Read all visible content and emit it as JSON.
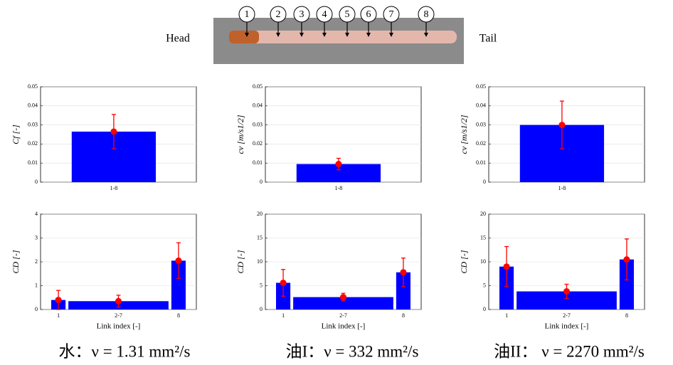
{
  "header": {
    "left_label": "Head",
    "right_label": "Tail",
    "link_numbers": [
      "1",
      "2",
      "3",
      "4",
      "5",
      "6",
      "7",
      "8"
    ]
  },
  "captions": [
    "水：ν = 1.31 mm²/s",
    "油I：ν = 332 mm²/s",
    "油II： ν = 2270 mm²/s"
  ],
  "chart_data": [
    {
      "type": "bar",
      "ylabel": "Cf [-]",
      "categories": [
        "1-8"
      ],
      "values": [
        0.0265
      ],
      "errors": [
        0.009
      ],
      "color": "#0000ff",
      "error_color": "#ff0000",
      "ylim": [
        0,
        0.05
      ],
      "yticks": [
        0,
        0.01,
        0.02,
        0.03,
        0.04,
        0.05
      ],
      "grid": true
    },
    {
      "type": "bar",
      "ylabel": "cv [m/s1/2]",
      "categories": [
        "1-8"
      ],
      "values": [
        0.0095
      ],
      "errors": [
        0.003
      ],
      "color": "#0000ff",
      "error_color": "#ff0000",
      "ylim": [
        0,
        0.05
      ],
      "yticks": [
        0,
        0.01,
        0.02,
        0.03,
        0.04,
        0.05
      ],
      "grid": true
    },
    {
      "type": "bar",
      "ylabel": "cv [m/s1/2]",
      "categories": [
        "1-8"
      ],
      "values": [
        0.03
      ],
      "errors": [
        0.0125
      ],
      "color": "#0000ff",
      "error_color": "#ff0000",
      "ylim": [
        0,
        0.05
      ],
      "yticks": [
        0,
        0.01,
        0.02,
        0.03,
        0.04,
        0.05
      ],
      "grid": true
    },
    {
      "type": "bar",
      "ylabel": "CD [-]",
      "xlabel": "Link index [-]",
      "categories": [
        "1",
        "2-7",
        "8"
      ],
      "values": [
        0.4,
        0.35,
        2.05
      ],
      "errors": [
        0.4,
        0.25,
        0.75
      ],
      "color": "#0000ff",
      "error_color": "#ff0000",
      "ylim": [
        0,
        4
      ],
      "yticks": [
        0,
        1,
        2,
        3,
        4
      ],
      "grid": true
    },
    {
      "type": "bar",
      "ylabel": "CD [-]",
      "xlabel": "Link index [-]",
      "categories": [
        "1",
        "2-7",
        "8"
      ],
      "values": [
        5.6,
        2.6,
        7.8
      ],
      "errors": [
        2.8,
        0.8,
        3
      ],
      "color": "#0000ff",
      "error_color": "#ff0000",
      "ylim": [
        0,
        20
      ],
      "yticks": [
        0,
        5,
        10,
        15,
        20
      ],
      "grid": true
    },
    {
      "type": "bar",
      "ylabel": "CD [-]",
      "xlabel": "Link index [-]",
      "categories": [
        "1",
        "2-7",
        "8"
      ],
      "values": [
        9,
        3.8,
        10.5
      ],
      "errors": [
        4.2,
        1.5,
        4.3
      ],
      "color": "#0000ff",
      "error_color": "#ff0000",
      "ylim": [
        0,
        20
      ],
      "yticks": [
        0,
        5,
        10,
        15,
        20
      ],
      "grid": true
    }
  ]
}
